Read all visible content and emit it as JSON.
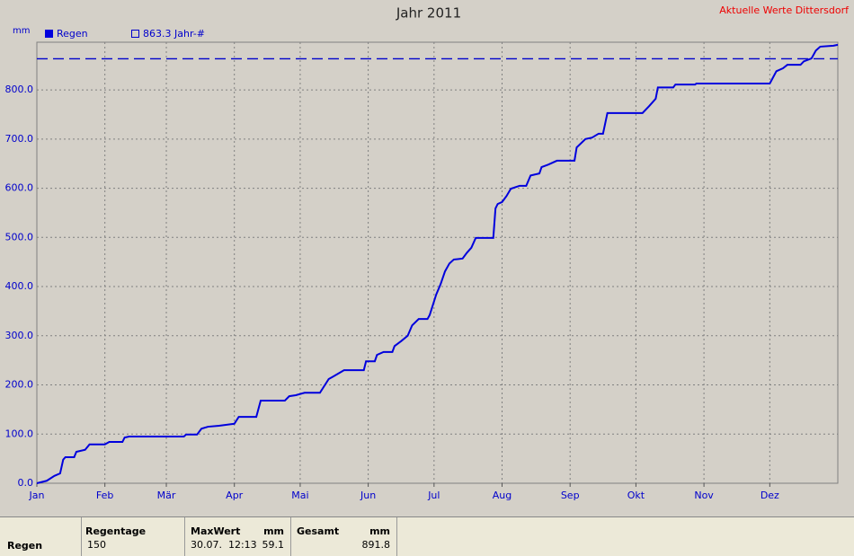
{
  "chart_data": {
    "type": "line",
    "title": "Jahr 2011",
    "header_note": "Aktuelle Werte  Dittersdorf",
    "y_label": "mm",
    "xlim": [
      0,
      365
    ],
    "ylim": [
      0,
      897
    ],
    "xticks": [
      {
        "value": 0,
        "label": "Jan"
      },
      {
        "value": 31,
        "label": "Feb"
      },
      {
        "value": 59,
        "label": "Mär"
      },
      {
        "value": 90,
        "label": "Apr"
      },
      {
        "value": 120,
        "label": "Mai"
      },
      {
        "value": 151,
        "label": "Jun"
      },
      {
        "value": 181,
        "label": "Jul"
      },
      {
        "value": 212,
        "label": "Aug"
      },
      {
        "value": 243,
        "label": "Sep"
      },
      {
        "value": 273,
        "label": "Okt"
      },
      {
        "value": 304,
        "label": "Nov"
      },
      {
        "value": 334,
        "label": "Dez"
      }
    ],
    "yticks": [
      {
        "value": 0,
        "label": "0.0"
      },
      {
        "value": 100,
        "label": "100.0"
      },
      {
        "value": 200,
        "label": "200.0"
      },
      {
        "value": 300,
        "label": "300.0"
      },
      {
        "value": 400,
        "label": "400.0"
      },
      {
        "value": 500,
        "label": "500.0"
      },
      {
        "value": 600,
        "label": "600.0"
      },
      {
        "value": 700,
        "label": "700.0"
      },
      {
        "value": 800,
        "label": "800.0"
      }
    ],
    "grid": true,
    "reference_line": {
      "value": 863.3,
      "label": "863.3 Jahr-#",
      "color": "#0000cc"
    },
    "series": [
      {
        "name": "Regen",
        "color": "#0000dd",
        "x": [
          0,
          4.5,
          8,
          10.6,
          12,
          13,
          17,
          18,
          22,
          24,
          31,
          33,
          39,
          40,
          42,
          67,
          68,
          73,
          75,
          78,
          83,
          90,
          92,
          100,
          102,
          113,
          115,
          118,
          122,
          129,
          133,
          135,
          140,
          149,
          150,
          154,
          155,
          158,
          162,
          163,
          166,
          169,
          171,
          174,
          178,
          179,
          182,
          184,
          186,
          188,
          190,
          194,
          196,
          198,
          200,
          208,
          209,
          210,
          212,
          214,
          216,
          220,
          223,
          225,
          229,
          230,
          233,
          237,
          245,
          246,
          250,
          253,
          256,
          258,
          260,
          276,
          279,
          282,
          283,
          290,
          291,
          300,
          300.5,
          334,
          337,
          340,
          342,
          348,
          349.5,
          353,
          355,
          357,
          363,
          365
        ],
        "values": [
          0,
          5,
          15,
          20,
          48,
          53,
          53,
          64,
          68,
          79,
          79,
          84,
          84,
          93,
          95,
          95,
          99,
          99,
          111,
          115,
          117,
          121,
          135,
          135,
          168,
          168,
          177,
          179,
          184,
          184,
          212,
          217,
          230,
          230,
          248,
          248,
          261,
          267,
          267,
          279,
          289,
          300,
          321,
          334,
          334,
          342,
          384,
          405,
          431,
          447,
          455,
          457,
          469,
          479,
          499,
          499,
          559,
          568,
          572,
          584,
          599,
          605,
          605,
          626,
          630,
          643,
          648,
          656,
          656,
          683,
          700,
          703,
          711,
          711,
          753,
          753,
          767,
          782,
          805,
          805,
          811,
          811,
          813,
          813,
          838,
          844,
          851,
          851,
          858,
          864,
          880,
          888,
          890,
          891.8
        ]
      }
    ]
  },
  "summary_table": {
    "headers": [
      "Regentage",
      "MaxWert",
      "mm",
      "Gesamt",
      "mm"
    ],
    "row_label": "Regen",
    "regentage": "150",
    "maxwert_time": "30.07.  12:13",
    "maxwert": "59.1",
    "gesamt": "891.8"
  }
}
